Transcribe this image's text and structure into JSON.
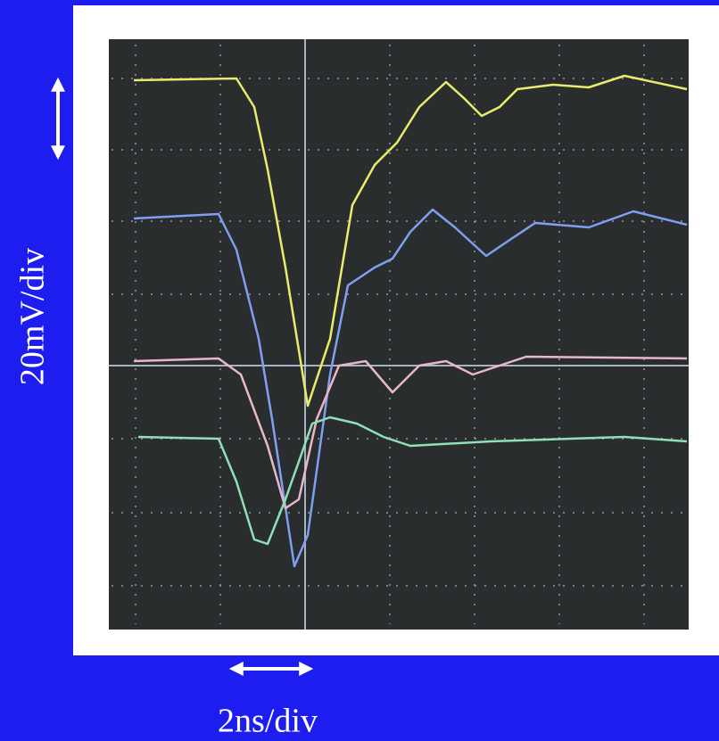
{
  "labels": {
    "vertical_scale": "20mV/div",
    "horizontal_scale": "2ns/div"
  }
}
